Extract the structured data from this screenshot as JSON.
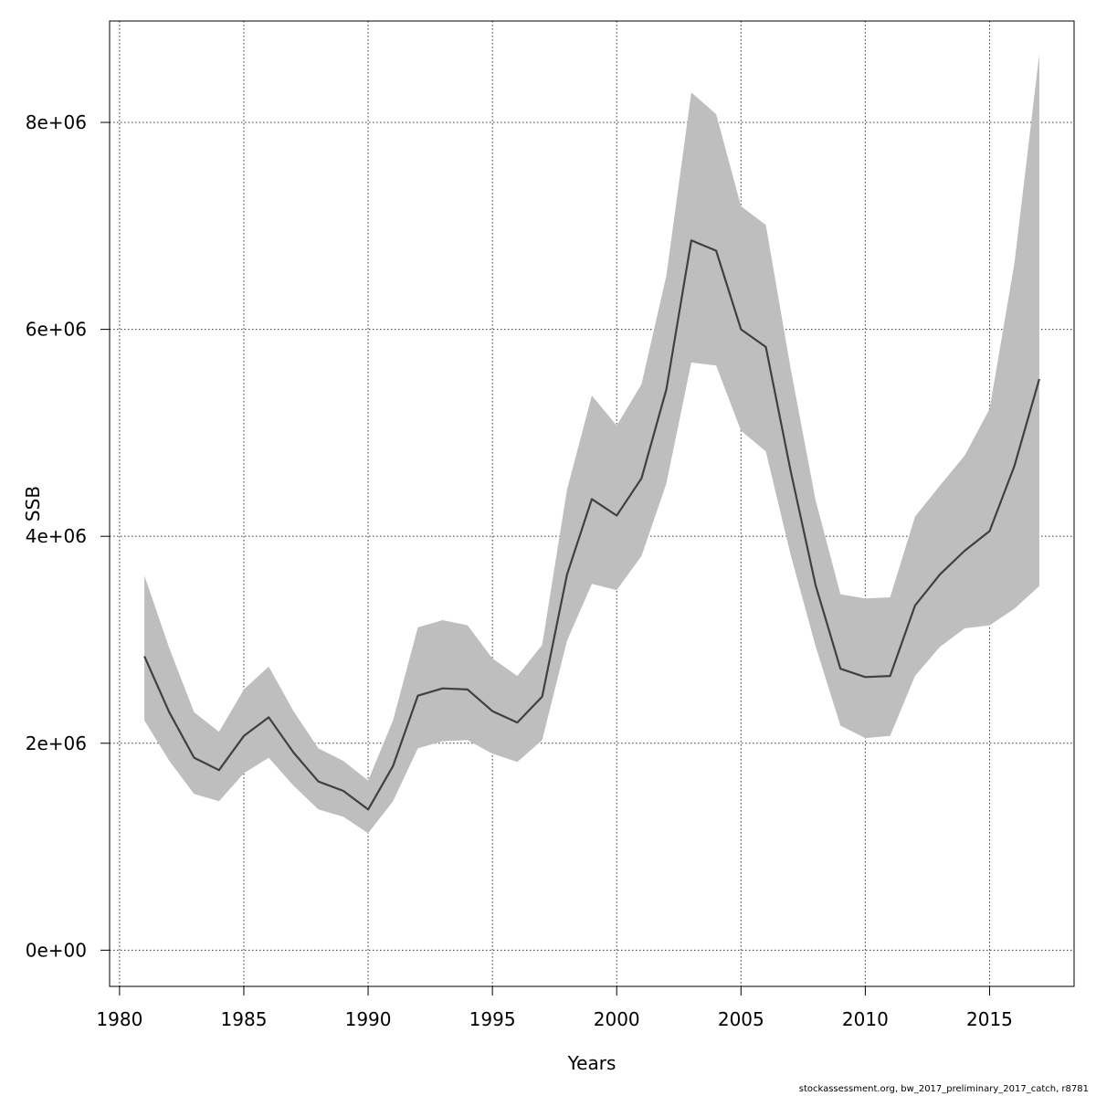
{
  "footer_note": "stockassessment.org, bw_2017_preliminary_2017_catch, r8781",
  "chart_data": {
    "type": "line",
    "xlabel": "Years",
    "ylabel": "SSB",
    "xlim": [
      1979.6,
      2018.4
    ],
    "ylim": [
      -350000,
      8980000
    ],
    "x_ticks": [
      1980,
      1985,
      1990,
      1995,
      2000,
      2005,
      2010,
      2015
    ],
    "x_tick_labels": [
      "1980",
      "1985",
      "1990",
      "1995",
      "2000",
      "2005",
      "2010",
      "2015"
    ],
    "y_ticks": [
      0,
      2000000,
      4000000,
      6000000,
      8000000
    ],
    "y_tick_labels": [
      "0e+00",
      "2e+06",
      "4e+06",
      "6e+06",
      "8e+06"
    ],
    "grid": true,
    "grid_style": "dotted",
    "line_color": "#404040",
    "band_color": "#bebebe",
    "x": [
      1981,
      1982,
      1983,
      1984,
      1985,
      1986,
      1987,
      1988,
      1989,
      1990,
      1991,
      1992,
      1993,
      1994,
      1995,
      1996,
      1997,
      1998,
      1999,
      2000,
      2001,
      2002,
      2003,
      2004,
      2005,
      2006,
      2007,
      2008,
      2009,
      2010,
      2011,
      2012,
      2013,
      2014,
      2015,
      2016,
      2017
    ],
    "series": [
      {
        "values": [
          2840000,
          2300000,
          1860000,
          1740000,
          2070000,
          2250000,
          1910000,
          1630000,
          1540000,
          1360000,
          1780000,
          2460000,
          2530000,
          2520000,
          2310000,
          2200000,
          2450000,
          3630000,
          4360000,
          4200000,
          4560000,
          5420000,
          6860000,
          6760000,
          6000000,
          5830000,
          4630000,
          3530000,
          2720000,
          2640000,
          2650000,
          3330000,
          3630000,
          3860000,
          4050000,
          4680000,
          5520000
        ],
        "lower": [
          2220000,
          1830000,
          1510000,
          1440000,
          1710000,
          1860000,
          1590000,
          1360000,
          1290000,
          1130000,
          1440000,
          1950000,
          2020000,
          2030000,
          1900000,
          1820000,
          2030000,
          2990000,
          3540000,
          3480000,
          3810000,
          4510000,
          5680000,
          5650000,
          5020000,
          4820000,
          3820000,
          2940000,
          2170000,
          2050000,
          2070000,
          2650000,
          2930000,
          3110000,
          3140000,
          3300000,
          3520000
        ],
        "upper": [
          3620000,
          2920000,
          2300000,
          2110000,
          2520000,
          2740000,
          2310000,
          1950000,
          1830000,
          1640000,
          2220000,
          3120000,
          3190000,
          3140000,
          2820000,
          2650000,
          2950000,
          4450000,
          5360000,
          5070000,
          5470000,
          6520000,
          8290000,
          8080000,
          7190000,
          7010000,
          5620000,
          4350000,
          3440000,
          3400000,
          3410000,
          4190000,
          4490000,
          4780000,
          5230000,
          6640000,
          8660000
        ]
      }
    ]
  }
}
